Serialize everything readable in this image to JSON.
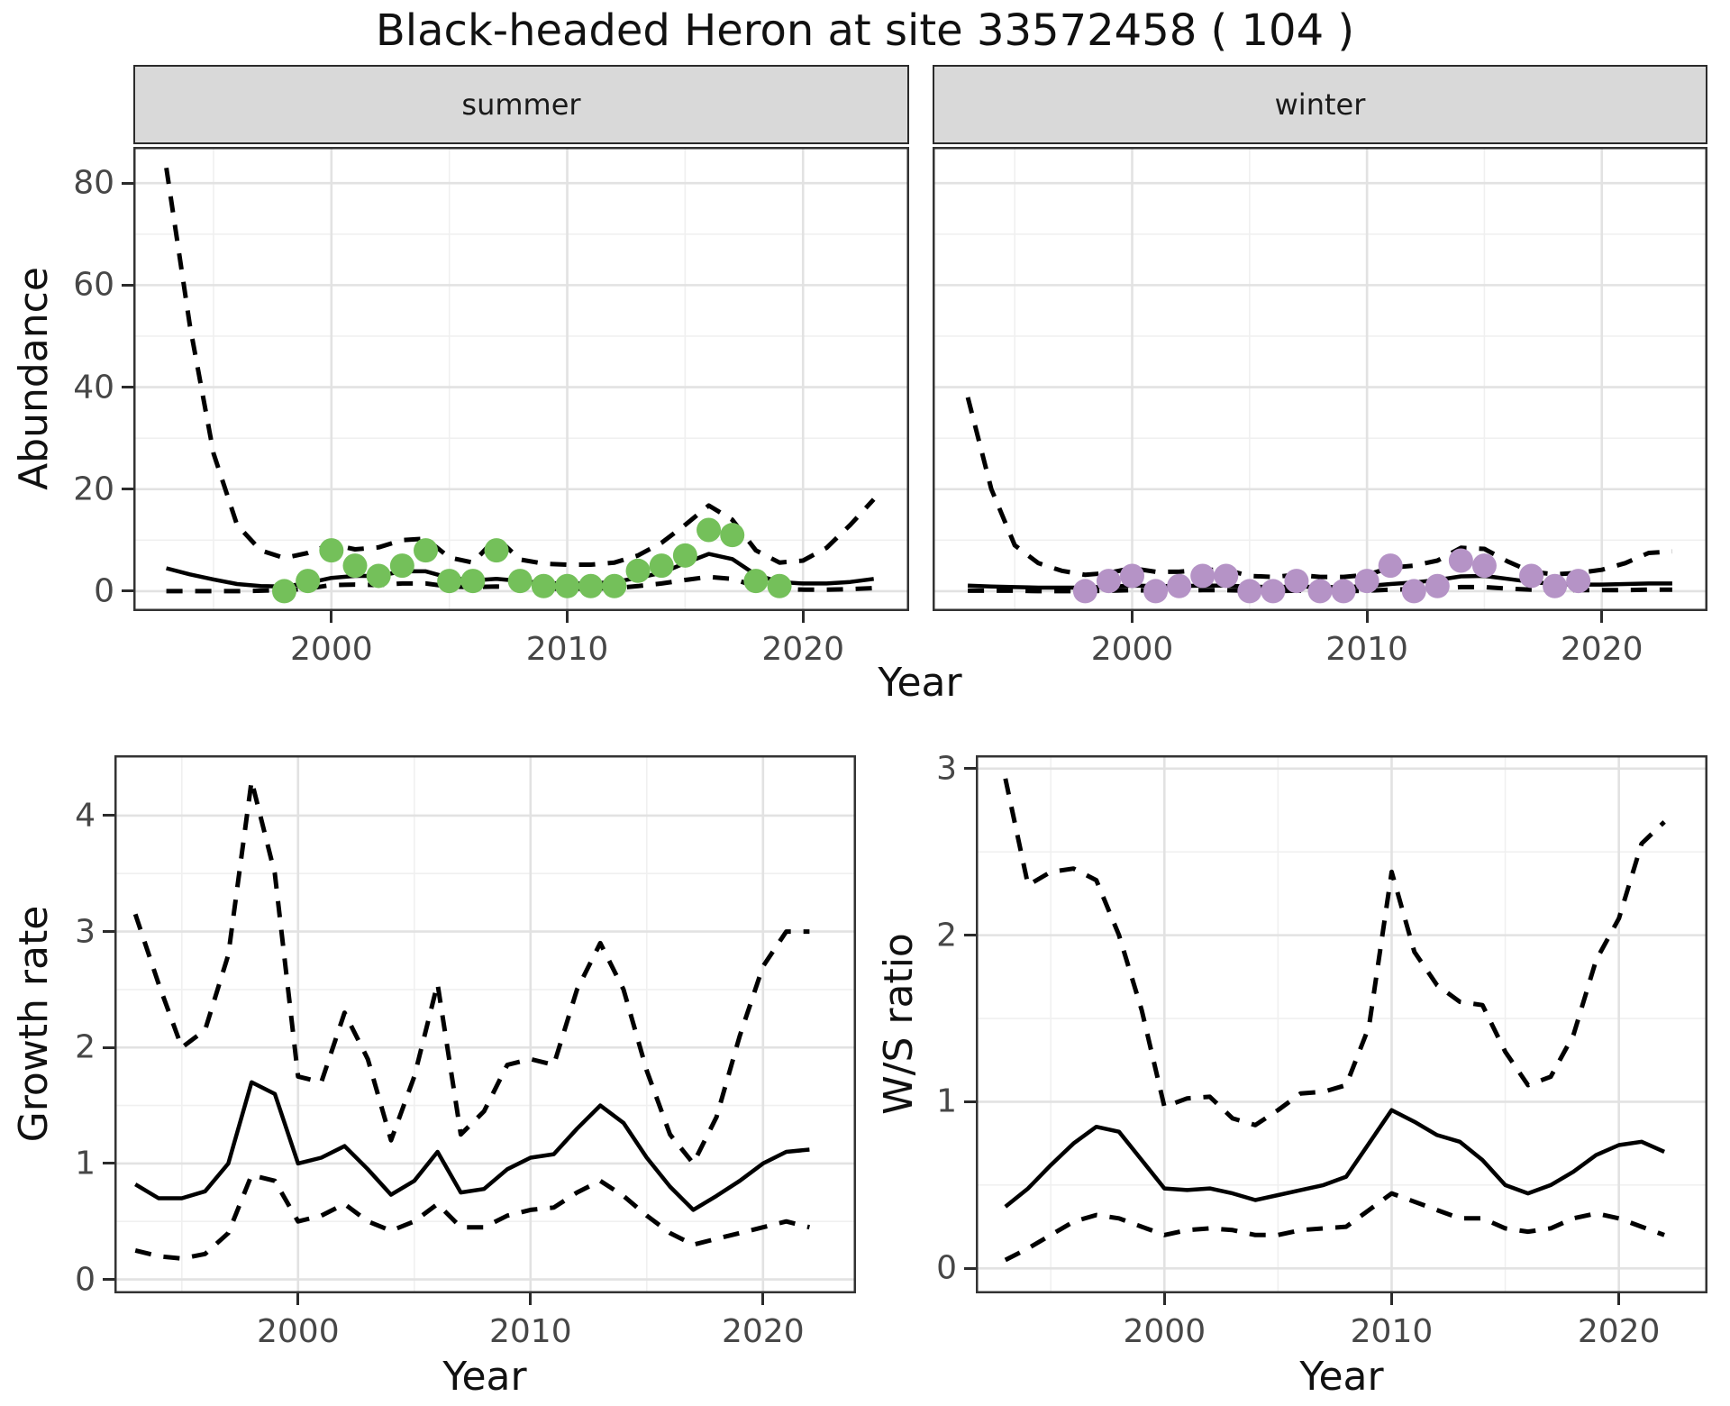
{
  "title": "Black-headed Heron at site 33572458 ( 104 )",
  "labels": {
    "y_top": "Abundance",
    "x_top": "Year",
    "y_bottom_left": "Growth rate",
    "x_bottom_left": "Year",
    "y_bottom_right": "W/S ratio",
    "x_bottom_right": "Year",
    "facet_summer": "summer",
    "facet_winter": "winter"
  },
  "colors": {
    "summer_point": "#74C05A",
    "winter_point": "#B593C6",
    "line": "#000000",
    "grid_major": "#E2E2E2",
    "grid_minor": "#F0F0F0",
    "panel_border": "#333333",
    "strip_bg": "#D9D9D9",
    "tick_text": "#474747"
  },
  "chart_data": [
    {
      "id": "abundance_summer",
      "type": "line",
      "facet_label": "summer",
      "ylabel": "Abundance",
      "xlabel": "Year",
      "xlim": [
        1991.6,
        2024.5
      ],
      "ylim": [
        -3.9,
        87.1
      ],
      "xticks": [
        2000,
        2010,
        2020
      ],
      "xticks_minor": [
        1995,
        2005,
        2015
      ],
      "yticks": [
        0,
        20,
        40,
        60,
        80
      ],
      "yticks_minor": [
        10,
        30,
        50,
        70
      ],
      "show_y_axis": true,
      "show_x_labels": true,
      "series": [
        {
          "name": "upper_ci",
          "style": "dashed",
          "x": [
            1993,
            1994,
            1995,
            1996,
            1997,
            1998,
            1999,
            2000,
            2001,
            2002,
            2003,
            2004,
            2005,
            2006,
            2007,
            2008,
            2009,
            2010,
            2011,
            2012,
            2013,
            2014,
            2015,
            2016,
            2017,
            2018,
            2019,
            2020,
            2021,
            2022,
            2023
          ],
          "y": [
            83,
            52,
            27,
            13,
            8,
            6.5,
            7.5,
            9.2,
            8.2,
            8.6,
            10,
            10.3,
            6.6,
            5.6,
            10.5,
            6.2,
            5.4,
            5.2,
            5.2,
            5.6,
            7,
            9.5,
            13,
            16.8,
            14,
            8,
            5.6,
            6,
            8.5,
            13,
            18
          ]
        },
        {
          "name": "lower_ci",
          "style": "dashed",
          "x": [
            1993,
            1994,
            1995,
            1996,
            1997,
            1998,
            1999,
            2000,
            2001,
            2002,
            2003,
            2004,
            2005,
            2006,
            2007,
            2008,
            2009,
            2010,
            2011,
            2012,
            2013,
            2014,
            2015,
            2016,
            2017,
            2018,
            2019,
            2020,
            2021,
            2022,
            2023
          ],
          "y": [
            0,
            0,
            0,
            0,
            0.1,
            0.2,
            0.5,
            1.2,
            1.3,
            1.2,
            1.5,
            1.5,
            0.9,
            0.8,
            0.9,
            0.7,
            0.5,
            0.5,
            0.5,
            0.6,
            1,
            1.5,
            2.2,
            2.8,
            2.4,
            1,
            0.4,
            0.3,
            0.3,
            0.4,
            0.6
          ]
        },
        {
          "name": "mean_fit",
          "style": "solid",
          "x": [
            1993,
            1994,
            1995,
            1996,
            1997,
            1998,
            1999,
            2000,
            2001,
            2002,
            2003,
            2004,
            2005,
            2006,
            2007,
            2008,
            2009,
            2010,
            2011,
            2012,
            2013,
            2014,
            2015,
            2016,
            2017,
            2018,
            2019,
            2020,
            2021,
            2022,
            2023
          ],
          "y": [
            4.5,
            3.3,
            2.3,
            1.4,
            1.0,
            0.9,
            1.6,
            2.6,
            3.0,
            3.0,
            3.9,
            3.9,
            2.6,
            2.1,
            2.4,
            2.0,
            1.6,
            1.5,
            1.5,
            1.8,
            2.6,
            3.6,
            5.5,
            7.3,
            6.3,
            3.2,
            1.8,
            1.5,
            1.5,
            1.8,
            2.4
          ]
        },
        {
          "name": "observations",
          "style": "points",
          "color": "#74C05A",
          "x": [
            1998,
            1999,
            2000,
            2001,
            2002,
            2003,
            2004,
            2005,
            2006,
            2007,
            2008,
            2009,
            2010,
            2011,
            2012,
            2013,
            2014,
            2015,
            2016,
            2017,
            2018,
            2019
          ],
          "y": [
            0,
            2,
            8,
            5,
            3,
            5,
            8,
            2,
            2,
            8,
            2,
            1,
            1,
            1,
            1,
            4,
            5,
            7,
            12,
            11,
            2,
            1
          ]
        }
      ]
    },
    {
      "id": "abundance_winter",
      "type": "line",
      "facet_label": "winter",
      "ylabel": "Abundance",
      "xlabel": "Year",
      "xlim": [
        1991.5,
        2024.5
      ],
      "ylim": [
        -3.9,
        87.1
      ],
      "xticks": [
        2000,
        2010,
        2020
      ],
      "xticks_minor": [
        1995,
        2005,
        2015
      ],
      "yticks": [
        0,
        20,
        40,
        60,
        80
      ],
      "yticks_minor": [
        10,
        30,
        50,
        70
      ],
      "show_y_axis": false,
      "show_x_labels": true,
      "series": [
        {
          "name": "upper_ci",
          "style": "dashed",
          "x": [
            1993,
            1994,
            1995,
            1996,
            1997,
            1998,
            1999,
            2000,
            2001,
            2002,
            2003,
            2004,
            2005,
            2006,
            2007,
            2008,
            2009,
            2010,
            2011,
            2012,
            2013,
            2014,
            2015,
            2016,
            2017,
            2018,
            2019,
            2020,
            2021,
            2022,
            2023
          ],
          "y": [
            38,
            20,
            9,
            5.5,
            4,
            3.2,
            3.6,
            4.5,
            3.8,
            3.8,
            4.2,
            4.2,
            3,
            2.8,
            3.2,
            2.8,
            2.8,
            3.2,
            4.6,
            5,
            6,
            8.5,
            8.3,
            5.8,
            3.8,
            3.3,
            3.6,
            4.2,
            5.5,
            7.5,
            7.8
          ]
        },
        {
          "name": "lower_ci",
          "style": "dashed",
          "x": [
            1993,
            1994,
            1995,
            1996,
            1997,
            1998,
            1999,
            2000,
            2001,
            2002,
            2003,
            2004,
            2005,
            2006,
            2007,
            2008,
            2009,
            2010,
            2011,
            2012,
            2013,
            2014,
            2015,
            2016,
            2017,
            2018,
            2019,
            2020,
            2021,
            2022,
            2023
          ],
          "y": [
            0.1,
            0.1,
            0.1,
            0,
            0,
            0,
            0.1,
            0.2,
            0.1,
            0.1,
            0.2,
            0.2,
            0.1,
            0,
            0.1,
            0,
            0,
            0.1,
            0.3,
            0.4,
            0.5,
            0.8,
            0.8,
            0.5,
            0.3,
            0.2,
            0.2,
            0.2,
            0.2,
            0.3,
            0.3
          ]
        },
        {
          "name": "mean_fit",
          "style": "solid",
          "x": [
            1993,
            1994,
            1995,
            1996,
            1997,
            1998,
            1999,
            2000,
            2001,
            2002,
            2003,
            2004,
            2005,
            2006,
            2007,
            2008,
            2009,
            2010,
            2011,
            2012,
            2013,
            2014,
            2015,
            2016,
            2017,
            2018,
            2019,
            2020,
            2021,
            2022,
            2023
          ],
          "y": [
            1.1,
            0.9,
            0.8,
            0.7,
            0.7,
            0.7,
            0.9,
            1.1,
            1.0,
            1.0,
            1.1,
            1.1,
            0.9,
            0.8,
            0.9,
            0.8,
            0.8,
            1.0,
            1.4,
            1.7,
            2.2,
            2.9,
            3.0,
            2.4,
            1.8,
            1.4,
            1.3,
            1.3,
            1.4,
            1.5,
            1.5
          ]
        },
        {
          "name": "observations",
          "style": "points",
          "color": "#B593C6",
          "x": [
            1998,
            1999,
            2000,
            2001,
            2002,
            2003,
            2004,
            2005,
            2006,
            2007,
            2008,
            2009,
            2010,
            2011,
            2012,
            2013,
            2014,
            2015,
            2017,
            2018,
            2019
          ],
          "y": [
            0,
            2,
            3,
            0,
            1,
            3,
            3,
            0,
            0,
            2,
            0,
            0,
            2,
            5,
            0,
            1,
            6,
            5,
            3,
            1,
            2
          ]
        }
      ]
    },
    {
      "id": "growth_rate",
      "type": "line",
      "facet_label": null,
      "ylabel": "Growth rate",
      "xlabel": "Year",
      "xlim": [
        1992.1,
        2024.0
      ],
      "ylim": [
        -0.12,
        4.52
      ],
      "xticks": [
        2000,
        2010,
        2020
      ],
      "xticks_minor": [
        1995,
        2005,
        2015
      ],
      "yticks": [
        0,
        1,
        2,
        3,
        4
      ],
      "yticks_minor": [
        0.5,
        1.5,
        2.5,
        3.5
      ],
      "show_y_axis": true,
      "show_x_labels": true,
      "series": [
        {
          "name": "upper_ci",
          "style": "dashed",
          "x": [
            1993,
            1994,
            1995,
            1996,
            1997,
            1998,
            1999,
            2000,
            2001,
            2002,
            2003,
            2004,
            2005,
            2006,
            2007,
            2008,
            2009,
            2010,
            2011,
            2012,
            2013,
            2014,
            2015,
            2016,
            2017,
            2018,
            2019,
            2020,
            2021,
            2022
          ],
          "y": [
            3.15,
            2.55,
            2.0,
            2.15,
            2.8,
            4.3,
            3.5,
            1.75,
            1.7,
            2.3,
            1.9,
            1.2,
            1.75,
            2.55,
            1.25,
            1.45,
            1.85,
            1.9,
            1.85,
            2.5,
            2.9,
            2.5,
            1.8,
            1.25,
            1.0,
            1.4,
            2.1,
            2.7,
            3.0,
            3.0
          ]
        },
        {
          "name": "lower_ci",
          "style": "dashed",
          "x": [
            1993,
            1994,
            1995,
            1996,
            1997,
            1998,
            1999,
            2000,
            2001,
            2002,
            2003,
            2004,
            2005,
            2006,
            2007,
            2008,
            2009,
            2010,
            2011,
            2012,
            2013,
            2014,
            2015,
            2016,
            2017,
            2018,
            2019,
            2020,
            2021,
            2022
          ],
          "y": [
            0.25,
            0.2,
            0.18,
            0.22,
            0.4,
            0.9,
            0.85,
            0.5,
            0.55,
            0.65,
            0.5,
            0.42,
            0.5,
            0.65,
            0.45,
            0.45,
            0.55,
            0.6,
            0.62,
            0.75,
            0.85,
            0.72,
            0.55,
            0.4,
            0.3,
            0.35,
            0.4,
            0.45,
            0.5,
            0.45
          ]
        },
        {
          "name": "mean_fit",
          "style": "solid",
          "x": [
            1993,
            1994,
            1995,
            1996,
            1997,
            1998,
            1999,
            2000,
            2001,
            2002,
            2003,
            2004,
            2005,
            2006,
            2007,
            2008,
            2009,
            2010,
            2011,
            2012,
            2013,
            2014,
            2015,
            2016,
            2017,
            2018,
            2019,
            2020,
            2021,
            2022
          ],
          "y": [
            0.82,
            0.7,
            0.7,
            0.76,
            1.0,
            1.7,
            1.6,
            1.0,
            1.05,
            1.15,
            0.95,
            0.73,
            0.85,
            1.1,
            0.75,
            0.78,
            0.95,
            1.05,
            1.08,
            1.3,
            1.5,
            1.35,
            1.05,
            0.8,
            0.6,
            0.72,
            0.85,
            1.0,
            1.1,
            1.12
          ]
        }
      ]
    },
    {
      "id": "ws_ratio",
      "type": "line",
      "facet_label": null,
      "ylabel": "W/S ratio",
      "xlabel": "Year",
      "xlim": [
        1991.7,
        2023.9
      ],
      "ylim": [
        -0.15,
        3.08
      ],
      "xticks": [
        2000,
        2010,
        2020
      ],
      "xticks_minor": [
        1995,
        2005,
        2015
      ],
      "yticks": [
        0,
        1,
        2,
        3
      ],
      "yticks_minor": [
        0.5,
        1.5,
        2.5
      ],
      "show_y_axis": true,
      "show_x_labels": true,
      "series": [
        {
          "name": "upper_ci",
          "style": "dashed",
          "x": [
            1993,
            1994,
            1995,
            1996,
            1997,
            1998,
            1999,
            2000,
            2001,
            2002,
            2003,
            2004,
            2005,
            2006,
            2007,
            2008,
            2009,
            2010,
            2011,
            2012,
            2013,
            2014,
            2015,
            2016,
            2017,
            2018,
            2019,
            2020,
            2021,
            2022
          ],
          "y": [
            2.94,
            2.3,
            2.38,
            2.4,
            2.33,
            2.0,
            1.55,
            0.97,
            1.02,
            1.03,
            0.9,
            0.86,
            0.95,
            1.05,
            1.06,
            1.1,
            1.45,
            2.38,
            1.9,
            1.7,
            1.6,
            1.58,
            1.3,
            1.1,
            1.15,
            1.4,
            1.85,
            2.1,
            2.55,
            2.68
          ]
        },
        {
          "name": "lower_ci",
          "style": "dashed",
          "x": [
            1993,
            1994,
            1995,
            1996,
            1997,
            1998,
            1999,
            2000,
            2001,
            2002,
            2003,
            2004,
            2005,
            2006,
            2007,
            2008,
            2009,
            2010,
            2011,
            2012,
            2013,
            2014,
            2015,
            2016,
            2017,
            2018,
            2019,
            2020,
            2021,
            2022
          ],
          "y": [
            0.05,
            0.12,
            0.2,
            0.28,
            0.32,
            0.3,
            0.25,
            0.2,
            0.23,
            0.24,
            0.23,
            0.2,
            0.2,
            0.23,
            0.24,
            0.25,
            0.35,
            0.45,
            0.4,
            0.35,
            0.3,
            0.3,
            0.24,
            0.22,
            0.24,
            0.3,
            0.33,
            0.3,
            0.25,
            0.2
          ]
        },
        {
          "name": "mean_fit",
          "style": "solid",
          "x": [
            1993,
            1994,
            1995,
            1996,
            1997,
            1998,
            1999,
            2000,
            2001,
            2002,
            2003,
            2004,
            2005,
            2006,
            2007,
            2008,
            2009,
            2010,
            2011,
            2012,
            2013,
            2014,
            2015,
            2016,
            2017,
            2018,
            2019,
            2020,
            2021,
            2022
          ],
          "y": [
            0.37,
            0.48,
            0.62,
            0.75,
            0.85,
            0.82,
            0.65,
            0.48,
            0.47,
            0.48,
            0.45,
            0.41,
            0.44,
            0.47,
            0.5,
            0.55,
            0.75,
            0.95,
            0.88,
            0.8,
            0.76,
            0.65,
            0.5,
            0.45,
            0.5,
            0.58,
            0.68,
            0.74,
            0.76,
            0.7
          ]
        }
      ]
    }
  ]
}
